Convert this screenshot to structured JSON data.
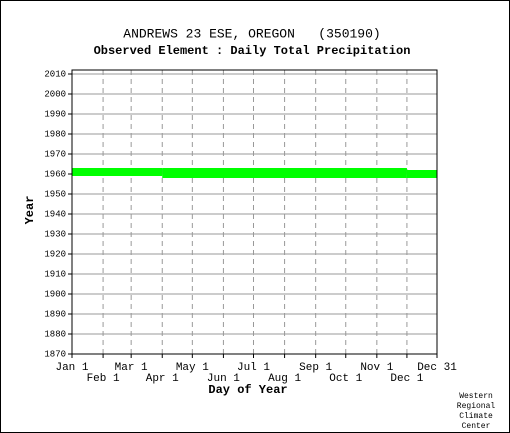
{
  "chart_data": {
    "type": "availability",
    "title": "ANDREWS 23 ESE, OREGON   (350190)",
    "subtitle": "Observed Element : Daily Total Precipitation",
    "x_label": "Day of Year",
    "y_label": "Year",
    "credit": [
      "Western",
      "Regional",
      "Climate",
      "Center"
    ],
    "color": "#00ff00",
    "xlim": [
      1,
      365
    ],
    "ylim": [
      1870,
      2012
    ],
    "xticks": [
      {
        "value": 1,
        "label": "Jan 1"
      },
      {
        "value": 32,
        "label": "Feb 1"
      },
      {
        "value": 60,
        "label": "Mar 1"
      },
      {
        "value": 91,
        "label": "Apr 1"
      },
      {
        "value": 121,
        "label": "May 1"
      },
      {
        "value": 152,
        "label": "Jun 1"
      },
      {
        "value": 182,
        "label": "Jul 1"
      },
      {
        "value": 213,
        "label": "Aug 1"
      },
      {
        "value": 244,
        "label": "Sep 1"
      },
      {
        "value": 274,
        "label": "Oct 1"
      },
      {
        "value": 305,
        "label": "Nov 1"
      },
      {
        "value": 335,
        "label": "Dec 1"
      },
      {
        "value": 365,
        "label": "Dec 31"
      }
    ],
    "yticks": [
      1870,
      1880,
      1890,
      1900,
      1910,
      1920,
      1930,
      1940,
      1950,
      1960,
      1970,
      1980,
      1990,
      2000,
      2010
    ],
    "grid": true,
    "bands": [
      {
        "x": [
          1,
          91
        ],
        "y": [
          1959,
          1963
        ]
      },
      {
        "x": [
          91,
          335
        ],
        "y": [
          1958,
          1963
        ]
      },
      {
        "x": [
          335,
          365
        ],
        "y": [
          1958,
          1962
        ]
      }
    ]
  }
}
